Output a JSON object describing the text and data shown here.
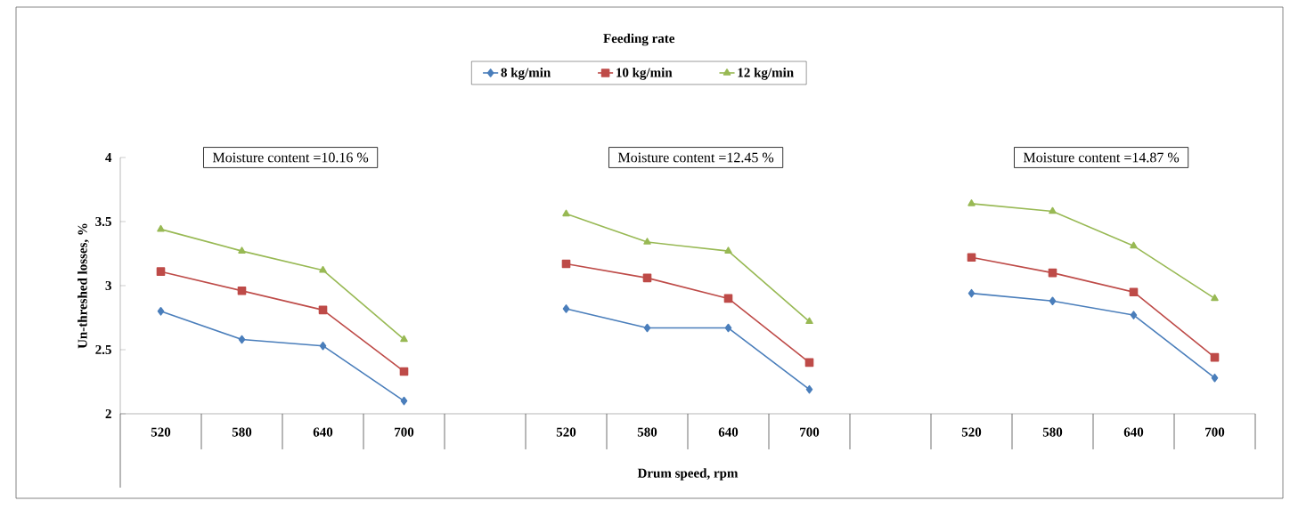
{
  "chart_data": {
    "type": "line",
    "xlabel": "Drum speed, rpm",
    "ylabel": "Un-threshed losses, %",
    "legend_title": "Feeding rate",
    "legend": "top",
    "categories": [
      "520",
      "580",
      "640",
      "700",
      null,
      "520",
      "580",
      "640",
      "700",
      null,
      "520",
      "580",
      "640",
      "700"
    ],
    "ylim": [
      2,
      4
    ],
    "yticks": [
      2,
      2.5,
      3,
      3.5,
      4
    ],
    "grid": false,
    "series": [
      {
        "name": "8 kg/min",
        "color": "#4a7ebb",
        "marker": "diamond",
        "values": [
          2.8,
          2.58,
          2.53,
          2.1,
          null,
          2.82,
          2.67,
          2.67,
          2.19,
          null,
          2.94,
          2.88,
          2.77,
          2.28
        ]
      },
      {
        "name": "10 kg/min",
        "color": "#be4b48",
        "marker": "square",
        "values": [
          3.11,
          2.96,
          2.81,
          2.33,
          null,
          3.17,
          3.06,
          2.9,
          2.4,
          null,
          3.22,
          3.1,
          2.95,
          2.44
        ]
      },
      {
        "name": "12 kg/min",
        "color": "#98b954",
        "marker": "triangle",
        "values": [
          3.44,
          3.27,
          3.12,
          2.58,
          null,
          3.56,
          3.34,
          3.27,
          2.72,
          null,
          3.64,
          3.58,
          3.31,
          2.9
        ]
      }
    ],
    "annotations": [
      "Moisture content =10.16 %",
      "Moisture content =12.45 %",
      "Moisture content =14.87 %"
    ]
  }
}
